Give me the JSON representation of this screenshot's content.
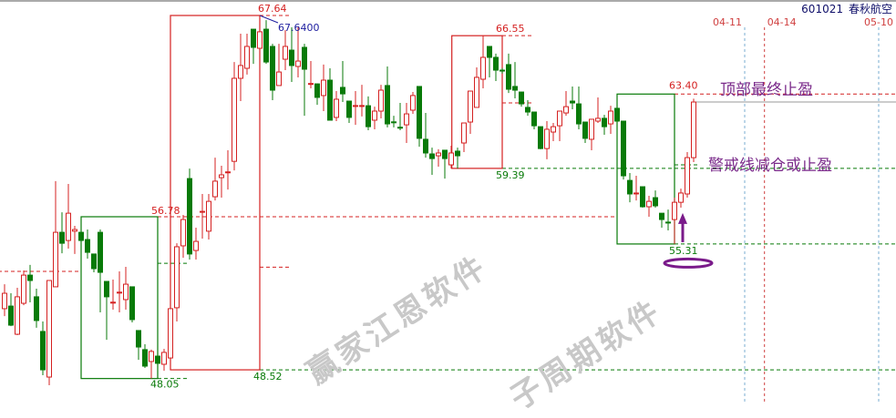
{
  "header": {
    "code": "601021",
    "name": "春秋航空"
  },
  "notes": {
    "top_take_profit": "顶部最终止盈",
    "warning_line": "警戒线减仓或止盈"
  },
  "watermark": {
    "line1": "赢家江恩软件",
    "line2": "子周期软件"
  },
  "colors": {
    "up": "#d42020",
    "down": "#087a08",
    "annotation": "#7a1a8a",
    "marker_text": "#2020a0",
    "date_line_blue": "#7aaed0",
    "date_line_red": "#d04040"
  },
  "chart_data": {
    "type": "candlestick",
    "title": "",
    "ylim": [
      47.2,
      68.4
    ],
    "grid": false,
    "candles": [
      [
        51.82,
        53.14,
        51.42,
        52.65
      ],
      [
        51.96,
        52.65,
        50.88,
        50.93
      ],
      [
        50.44,
        52.95,
        50.39,
        52.46
      ],
      [
        52.11,
        53.88,
        52.01,
        53.63
      ],
      [
        53.63,
        54.18,
        52.16,
        53.34
      ],
      [
        52.46,
        52.9,
        50.79,
        51.18
      ],
      [
        50.59,
        51.13,
        48.23,
        48.52
      ],
      [
        48.13,
        53.34,
        47.69,
        53.34
      ],
      [
        53.0,
        58.7,
        53.0,
        55.94
      ],
      [
        55.94,
        57.02,
        54.81,
        55.35
      ],
      [
        55.5,
        58.55,
        55.06,
        56.97
      ],
      [
        56.0,
        56.29,
        54.77,
        56.09
      ],
      [
        55.94,
        55.94,
        55.5,
        55.5
      ],
      [
        55.55,
        56.09,
        54.52,
        54.86
      ],
      [
        54.77,
        54.77,
        53.78,
        53.98
      ],
      [
        55.94,
        56.09,
        51.62,
        53.78
      ],
      [
        53.29,
        53.29,
        50.14,
        52.46
      ],
      [
        52.16,
        53.39,
        51.77,
        52.17
      ],
      [
        52.7,
        53.83,
        51.62,
        52.71
      ],
      [
        52.31,
        54.08,
        51.77,
        53.14
      ],
      [
        53.0,
        53.0,
        51.08,
        51.23
      ],
      [
        50.64,
        50.64,
        49.06,
        49.75
      ],
      [
        49.61,
        49.9,
        48.62,
        48.72
      ],
      [
        48.97,
        49.61,
        48.05,
        49.51
      ],
      [
        49.26,
        49.41,
        48.67,
        48.87
      ],
      [
        48.82,
        49.65,
        48.47,
        49.46
      ],
      [
        49.16,
        51.82,
        48.52,
        51.82
      ],
      [
        51.87,
        55.35,
        51.13,
        55.16
      ],
      [
        55.21,
        56.88,
        54.57,
        56.63
      ],
      [
        58.84,
        59.38,
        54.47,
        54.77
      ],
      [
        54.96,
        56.19,
        54.47,
        55.45
      ],
      [
        57.05,
        58.01,
        55.6,
        57.07
      ],
      [
        56.0,
        58.01,
        55.55,
        57.61
      ],
      [
        57.86,
        59.97,
        57.66,
        58.7
      ],
      [
        58.89,
        59.53,
        57.81,
        59.04
      ],
      [
        59.18,
        60.37,
        58.25,
        59.2
      ],
      [
        59.77,
        65.13,
        59.28,
        64.25
      ],
      [
        64.25,
        66.66,
        63.02,
        64.94
      ],
      [
        64.79,
        66.66,
        64.45,
        65.97
      ],
      [
        66.9,
        66.9,
        65.03,
        65.92
      ],
      [
        65.87,
        67.64,
        65.87,
        66.76
      ],
      [
        66.9,
        67.39,
        65.03,
        65.13
      ],
      [
        65.97,
        66.11,
        63.07,
        63.61
      ],
      [
        63.86,
        66.11,
        63.86,
        64.59
      ],
      [
        65.28,
        66.85,
        64.69,
        65.97
      ],
      [
        65.77,
        67.0,
        64.05,
        64.94
      ],
      [
        64.89,
        67.0,
        64.3,
        65.18
      ],
      [
        65.92,
        66.11,
        62.23,
        64.74
      ],
      [
        63.95,
        65.18,
        63.71,
        63.97
      ],
      [
        63.95,
        63.97,
        62.82,
        63.22
      ],
      [
        63.32,
        64.99,
        62.48,
        64.15
      ],
      [
        64.15,
        64.79,
        61.99,
        61.99
      ],
      [
        62.14,
        63.56,
        61.94,
        63.12
      ],
      [
        63.76,
        65.18,
        62.97,
        63.41
      ],
      [
        63.02,
        63.02,
        61.84,
        62.14
      ],
      [
        62.77,
        63.56,
        61.74,
        62.78
      ],
      [
        62.77,
        63.9,
        62.19,
        62.78
      ],
      [
        62.77,
        63.27,
        61.45,
        61.64
      ],
      [
        61.99,
        62.72,
        61.5,
        62.48
      ],
      [
        62.48,
        63.9,
        62.09,
        63.61
      ],
      [
        63.86,
        64.89,
        61.6,
        61.79
      ],
      [
        61.9,
        62.23,
        61.6,
        61.89
      ],
      [
        61.61,
        62.92,
        61.45,
        61.6
      ],
      [
        61.74,
        62.92,
        60.76,
        62.33
      ],
      [
        62.53,
        63.51,
        62.33,
        63.32
      ],
      [
        63.81,
        63.81,
        60.56,
        61.01
      ],
      [
        60.96,
        62.38,
        59.97,
        60.22
      ],
      [
        60.17,
        60.51,
        59.04,
        59.92
      ],
      [
        60.07,
        60.42,
        59.48,
        60.22
      ],
      [
        60.37,
        60.37,
        58.84,
        59.92
      ],
      [
        59.58,
        60.61,
        59.38,
        60.22
      ],
      [
        60.32,
        60.51,
        59.38,
        60.07
      ],
      [
        60.76,
        61.84,
        60.27,
        61.84
      ],
      [
        61.89,
        63.56,
        61.25,
        63.56
      ],
      [
        62.68,
        64.84,
        62.68,
        64.3
      ],
      [
        64.2,
        66.55,
        63.71,
        65.38
      ],
      [
        65.97,
        65.97,
        64.3,
        65.38
      ],
      [
        65.38,
        65.58,
        64.1,
        64.69
      ],
      [
        64.69,
        64.8,
        64.5,
        64.67
      ],
      [
        64.99,
        65.58,
        63.46,
        63.66
      ],
      [
        63.81,
        65.13,
        63.17,
        63.61
      ],
      [
        63.51,
        63.51,
        62.72,
        62.87
      ],
      [
        62.68,
        63.07,
        62.23,
        62.43
      ],
      [
        62.43,
        62.43,
        61.5,
        61.69
      ],
      [
        61.64,
        61.64,
        60.42,
        60.46
      ],
      [
        60.46,
        61.94,
        59.88,
        61.5
      ],
      [
        61.35,
        61.84,
        60.86,
        61.64
      ],
      [
        61.69,
        62.48,
        60.86,
        62.48
      ],
      [
        62.38,
        63.56,
        62.23,
        62.72
      ],
      [
        63.02,
        63.81,
        62.58,
        62.92
      ],
      [
        62.87,
        63.81,
        61.5,
        61.79
      ],
      [
        61.89,
        61.89,
        60.76,
        61.01
      ],
      [
        60.96,
        62.04,
        60.37,
        62.04
      ],
      [
        61.94,
        63.22,
        61.84,
        62.09
      ],
      [
        62.09,
        62.28,
        61.2,
        61.64
      ],
      [
        61.79,
        62.77,
        61.25,
        62.48
      ],
      [
        62.63,
        62.63,
        61.94,
        61.94
      ],
      [
        61.94,
        61.94,
        58.79,
        58.99
      ],
      [
        58.74,
        59.14,
        57.56,
        58.01
      ],
      [
        58.05,
        58.99,
        57.66,
        58.06
      ],
      [
        58.4,
        58.4,
        57.27,
        57.32
      ],
      [
        57.32,
        57.91,
        56.78,
        57.61
      ],
      [
        57.81,
        58.2,
        57.27,
        57.37
      ],
      [
        56.97,
        56.97,
        56.19,
        56.63
      ],
      [
        56.49,
        57.17,
        56.04,
        56.48
      ],
      [
        56.63,
        57.81,
        55.31,
        57.56
      ],
      [
        57.56,
        58.3,
        57.27,
        58.06
      ],
      [
        58.01,
        60.27,
        57.81,
        59.97
      ],
      [
        59.97,
        63.15,
        59.73,
        62.97
      ]
    ],
    "boxes": [
      {
        "from": 12,
        "to": 24,
        "high": 56.78,
        "low": 48.05,
        "color": "#087a08"
      },
      {
        "from": 26,
        "to": 40,
        "high": 67.64,
        "low": 48.52,
        "color": "#d42020"
      },
      {
        "from": 70.1,
        "to": 78,
        "high": 66.55,
        "low": 59.39,
        "color": "#d42020"
      },
      {
        "from": 96,
        "to": 105,
        "high": 63.4,
        "low": 55.31,
        "color": "#087a08"
      }
    ],
    "levels": [
      {
        "price": 53.83,
        "from": -1,
        "to": 12,
        "color": "#d42020",
        "style": "dashed"
      },
      {
        "price": 56.78,
        "from": 24,
        "to": 96,
        "color": "#d42020",
        "style": "dashed"
      },
      {
        "price": 54.27,
        "from": 24,
        "to": 29,
        "color": "#087a08",
        "style": "dashed"
      },
      {
        "price": 48.05,
        "from": 24,
        "to": 29,
        "color": "#087a08",
        "style": "dashed"
      },
      {
        "price": 54.06,
        "from": 40,
        "to": 45,
        "color": "#d42020",
        "style": "dashed"
      },
      {
        "price": 48.52,
        "from": 40,
        "to": 141,
        "color": "#087a08",
        "style": "dashed"
      },
      {
        "price": 67.64,
        "from": 40,
        "to": 45,
        "color": "#d42020",
        "style": "dashed"
      },
      {
        "price": 66.55,
        "from": 78,
        "to": 83,
        "color": "#d42020",
        "style": "dashed"
      },
      {
        "price": 62.92,
        "from": 78,
        "to": 83,
        "color": "#d42020",
        "style": "dashed"
      },
      {
        "price": 59.39,
        "from": 78,
        "to": 141,
        "color": "#087a08",
        "style": "dashed"
      },
      {
        "price": 63.4,
        "from": 105,
        "to": 141,
        "color": "#d42020",
        "style": "dashed"
      },
      {
        "price": 55.31,
        "from": 105,
        "to": 141,
        "color": "#087a08",
        "style": "dashed"
      },
      {
        "price": 59.58,
        "from": 105,
        "to": 109,
        "color": "#087a08",
        "style": "dashed"
      },
      {
        "price": 62.97,
        "from": 108,
        "to": 141,
        "color": "#999999",
        "style": "solid"
      }
    ],
    "price_labels": [
      {
        "text": "67.64",
        "price": 67.64,
        "index": 40,
        "color": "#d42020"
      },
      {
        "text": "67.6400",
        "price": 67.64,
        "index": 40,
        "color": "#2020a0"
      },
      {
        "text": "56.78",
        "price": 56.78,
        "index": 24,
        "color": "#d42020"
      },
      {
        "text": "48.05",
        "price": 48.05,
        "index": 24,
        "color": "#087a08"
      },
      {
        "text": "48.52",
        "price": 48.52,
        "index": 40,
        "color": "#087a08"
      },
      {
        "text": "66.55",
        "price": 66.55,
        "index": 78,
        "color": "#d42020"
      },
      {
        "text": "59.39",
        "price": 59.39,
        "index": 78,
        "color": "#087a08"
      },
      {
        "text": "63.40",
        "price": 63.4,
        "index": 105,
        "color": "#d42020"
      },
      {
        "text": "55.31",
        "price": 55.31,
        "index": 105,
        "color": "#087a08"
      }
    ],
    "date_lines": [
      {
        "label": "04-11",
        "index": 116,
        "color": "#7aaed0"
      },
      {
        "label": "04-14",
        "index": 119.1,
        "color": "#d04040"
      },
      {
        "label": "05-10",
        "index": 137,
        "color": "#7aaed0"
      }
    ],
    "marker": {
      "index": 106,
      "price": 55.31,
      "shape": "up-arrow-with-ellipse"
    }
  }
}
